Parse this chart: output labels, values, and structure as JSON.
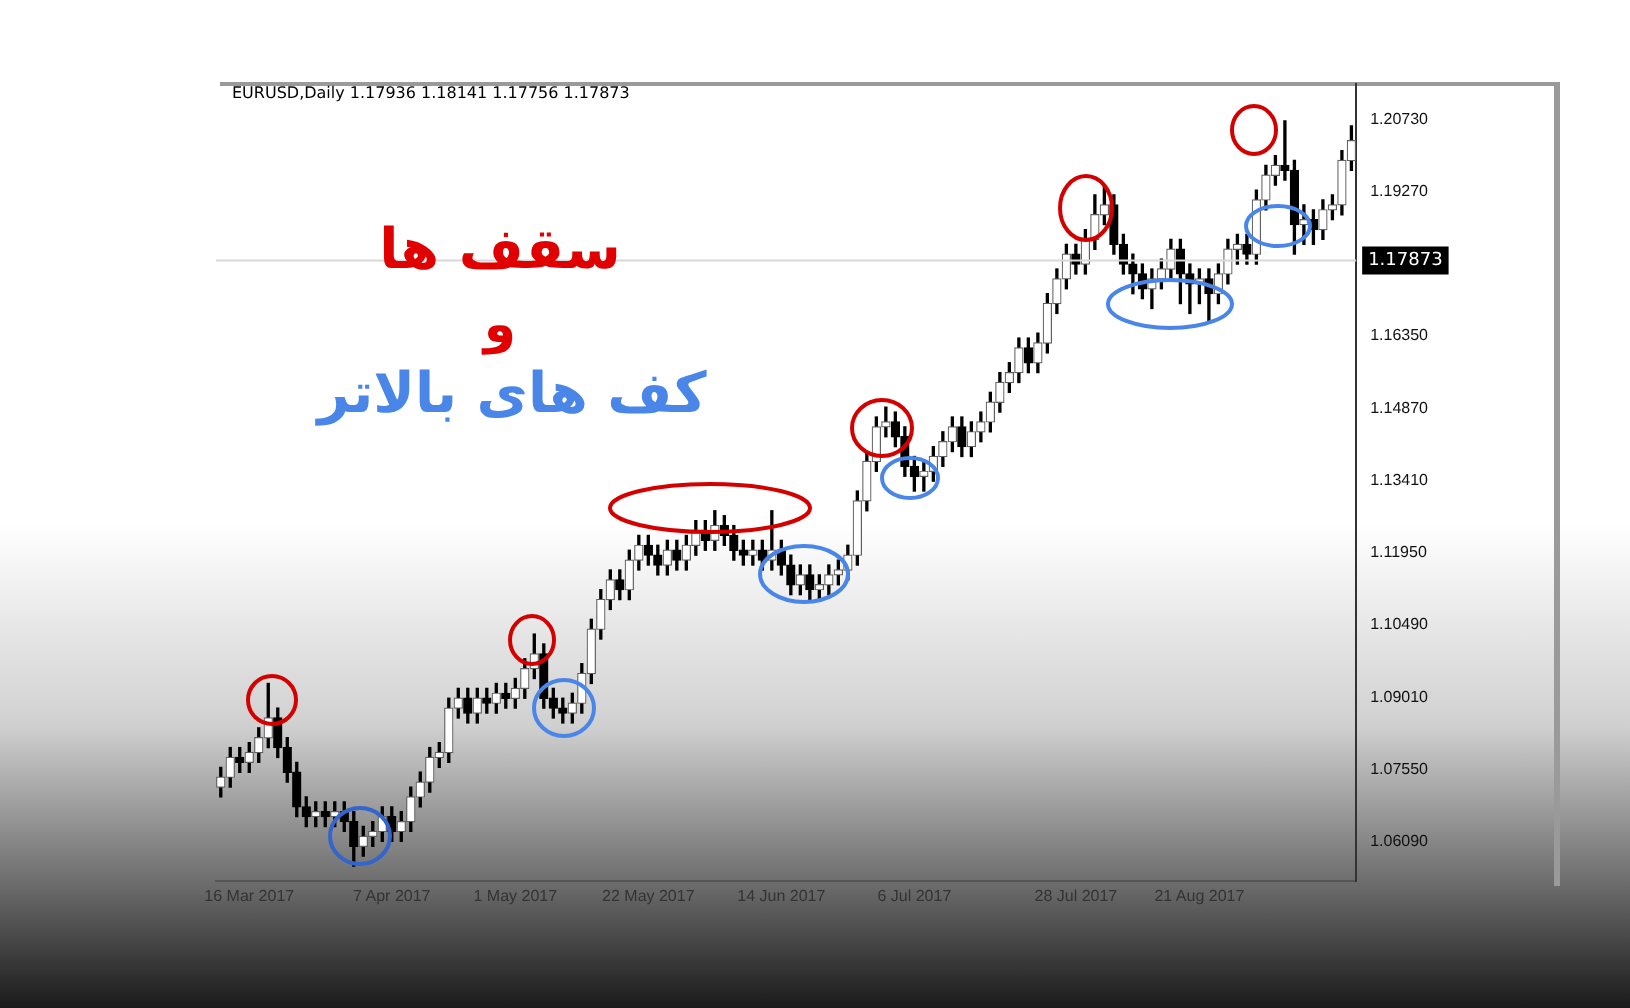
{
  "chart_data": {
    "type": "candlestick",
    "subtitle": "EURUSD,Daily  1.17936 1.18141 1.17756 1.17873",
    "annotations": [
      "سقف ها",
      "و",
      "کف های بالاتر"
    ],
    "categories": [
      null,
      null,
      null,
      "16 Mar 2017",
      null,
      null,
      null,
      null,
      null,
      null,
      null,
      null,
      null,
      null,
      null,
      null,
      null,
      null,
      "7 Apr 2017",
      null,
      null,
      null,
      null,
      null,
      null,
      null,
      null,
      null,
      null,
      null,
      null,
      "1 May 2017",
      null,
      null,
      null,
      null,
      null,
      null,
      null,
      null,
      null,
      null,
      null,
      null,
      null,
      "22 May 2017",
      null,
      null,
      null,
      null,
      null,
      null,
      null,
      null,
      null,
      null,
      null,
      null,
      null,
      "14 Jun 2017",
      null,
      null,
      null,
      null,
      null,
      null,
      null,
      null,
      null,
      null,
      null,
      null,
      null,
      "6 Jul 2017",
      null,
      null,
      null,
      null,
      null,
      null,
      null,
      null,
      null,
      null,
      null,
      null,
      null,
      null,
      null,
      null,
      "28 Jul 2017",
      null,
      null,
      null,
      null,
      null,
      null,
      null,
      null,
      null,
      null,
      null,
      null,
      "21 Aug 2017",
      null,
      null,
      null,
      null,
      null,
      null,
      null,
      null,
      null,
      null,
      null,
      null,
      null,
      null,
      null,
      null
    ],
    "ohlc": [
      [
        1.072,
        1.076,
        1.07,
        1.074
      ],
      [
        1.074,
        1.08,
        1.072,
        1.078
      ],
      [
        1.078,
        1.08,
        1.075,
        1.077
      ],
      [
        1.077,
        1.081,
        1.075,
        1.079
      ],
      [
        1.079,
        1.084,
        1.077,
        1.082
      ],
      [
        1.082,
        1.093,
        1.08,
        1.086
      ],
      [
        1.086,
        1.088,
        1.078,
        1.08
      ],
      [
        1.08,
        1.082,
        1.073,
        1.075
      ],
      [
        1.075,
        1.077,
        1.066,
        1.068
      ],
      [
        1.068,
        1.07,
        1.064,
        1.066
      ],
      [
        1.066,
        1.069,
        1.064,
        1.067
      ],
      [
        1.067,
        1.069,
        1.064,
        1.066
      ],
      [
        1.066,
        1.069,
        1.064,
        1.067
      ],
      [
        1.067,
        1.069,
        1.063,
        1.065
      ],
      [
        1.065,
        1.067,
        1.056,
        1.06
      ],
      [
        1.06,
        1.064,
        1.058,
        1.062
      ],
      [
        1.062,
        1.065,
        1.06,
        1.063
      ],
      [
        1.063,
        1.068,
        1.061,
        1.066
      ],
      [
        1.066,
        1.068,
        1.061,
        1.063
      ],
      [
        1.063,
        1.067,
        1.061,
        1.065
      ],
      [
        1.065,
        1.072,
        1.063,
        1.07
      ],
      [
        1.07,
        1.075,
        1.068,
        1.073
      ],
      [
        1.073,
        1.08,
        1.071,
        1.078
      ],
      [
        1.078,
        1.081,
        1.076,
        1.079
      ],
      [
        1.079,
        1.09,
        1.077,
        1.088
      ],
      [
        1.088,
        1.092,
        1.086,
        1.09
      ],
      [
        1.09,
        1.092,
        1.085,
        1.087
      ],
      [
        1.087,
        1.092,
        1.085,
        1.09
      ],
      [
        1.09,
        1.092,
        1.087,
        1.089
      ],
      [
        1.089,
        1.093,
        1.087,
        1.091
      ],
      [
        1.091,
        1.093,
        1.088,
        1.09
      ],
      [
        1.09,
        1.094,
        1.088,
        1.092
      ],
      [
        1.092,
        1.098,
        1.09,
        1.096
      ],
      [
        1.096,
        1.103,
        1.094,
        1.099
      ],
      [
        1.099,
        1.101,
        1.088,
        1.09
      ],
      [
        1.09,
        1.092,
        1.086,
        1.088
      ],
      [
        1.088,
        1.09,
        1.085,
        1.087
      ],
      [
        1.087,
        1.091,
        1.085,
        1.089
      ],
      [
        1.089,
        1.097,
        1.087,
        1.095
      ],
      [
        1.095,
        1.106,
        1.093,
        1.104
      ],
      [
        1.104,
        1.112,
        1.102,
        1.11
      ],
      [
        1.11,
        1.116,
        1.108,
        1.114
      ],
      [
        1.114,
        1.116,
        1.11,
        1.112
      ],
      [
        1.112,
        1.12,
        1.11,
        1.118
      ],
      [
        1.118,
        1.123,
        1.116,
        1.121
      ],
      [
        1.121,
        1.123,
        1.117,
        1.119
      ],
      [
        1.119,
        1.121,
        1.115,
        1.117
      ],
      [
        1.117,
        1.122,
        1.115,
        1.12
      ],
      [
        1.12,
        1.122,
        1.116,
        1.118
      ],
      [
        1.118,
        1.123,
        1.116,
        1.121
      ],
      [
        1.121,
        1.126,
        1.119,
        1.124
      ],
      [
        1.124,
        1.126,
        1.12,
        1.122
      ],
      [
        1.122,
        1.128,
        1.12,
        1.125
      ],
      [
        1.125,
        1.127,
        1.121,
        1.123
      ],
      [
        1.123,
        1.125,
        1.118,
        1.12
      ],
      [
        1.12,
        1.122,
        1.117,
        1.119
      ],
      [
        1.119,
        1.122,
        1.117,
        1.12
      ],
      [
        1.12,
        1.122,
        1.116,
        1.118
      ],
      [
        1.118,
        1.128,
        1.116,
        1.12
      ],
      [
        1.12,
        1.122,
        1.115,
        1.117
      ],
      [
        1.117,
        1.119,
        1.111,
        1.113
      ],
      [
        1.113,
        1.117,
        1.111,
        1.115
      ],
      [
        1.115,
        1.117,
        1.11,
        1.112
      ],
      [
        1.112,
        1.115,
        1.11,
        1.113
      ],
      [
        1.113,
        1.117,
        1.111,
        1.115
      ],
      [
        1.115,
        1.118,
        1.113,
        1.116
      ],
      [
        1.116,
        1.121,
        1.114,
        1.119
      ],
      [
        1.119,
        1.132,
        1.117,
        1.13
      ],
      [
        1.13,
        1.14,
        1.128,
        1.138
      ],
      [
        1.138,
        1.147,
        1.136,
        1.145
      ],
      [
        1.145,
        1.149,
        1.143,
        1.146
      ],
      [
        1.146,
        1.148,
        1.141,
        1.143
      ],
      [
        1.143,
        1.145,
        1.135,
        1.137
      ],
      [
        1.137,
        1.139,
        1.132,
        1.135
      ],
      [
        1.135,
        1.138,
        1.132,
        1.136
      ],
      [
        1.136,
        1.141,
        1.134,
        1.139
      ],
      [
        1.139,
        1.144,
        1.137,
        1.142
      ],
      [
        1.142,
        1.147,
        1.14,
        1.145
      ],
      [
        1.145,
        1.147,
        1.139,
        1.141
      ],
      [
        1.141,
        1.146,
        1.139,
        1.144
      ],
      [
        1.144,
        1.148,
        1.142,
        1.146
      ],
      [
        1.146,
        1.152,
        1.144,
        1.15
      ],
      [
        1.15,
        1.156,
        1.148,
        1.154
      ],
      [
        1.154,
        1.158,
        1.152,
        1.156
      ],
      [
        1.156,
        1.163,
        1.154,
        1.161
      ],
      [
        1.161,
        1.163,
        1.156,
        1.158
      ],
      [
        1.158,
        1.164,
        1.156,
        1.162
      ],
      [
        1.162,
        1.172,
        1.16,
        1.17
      ],
      [
        1.17,
        1.177,
        1.168,
        1.175
      ],
      [
        1.175,
        1.182,
        1.173,
        1.18
      ],
      [
        1.18,
        1.182,
        1.176,
        1.178
      ],
      [
        1.178,
        1.185,
        1.176,
        1.183
      ],
      [
        1.183,
        1.192,
        1.181,
        1.188
      ],
      [
        1.188,
        1.194,
        1.186,
        1.19
      ],
      [
        1.19,
        1.192,
        1.18,
        1.182
      ],
      [
        1.182,
        1.184,
        1.176,
        1.178
      ],
      [
        1.178,
        1.18,
        1.172,
        1.176
      ],
      [
        1.176,
        1.178,
        1.171,
        1.173
      ],
      [
        1.173,
        1.177,
        1.169,
        1.175
      ],
      [
        1.175,
        1.179,
        1.173,
        1.177
      ],
      [
        1.177,
        1.183,
        1.175,
        1.181
      ],
      [
        1.181,
        1.183,
        1.17,
        1.176
      ],
      [
        1.176,
        1.178,
        1.168,
        1.174
      ],
      [
        1.174,
        1.177,
        1.17,
        1.175
      ],
      [
        1.175,
        1.177,
        1.166,
        1.172
      ],
      [
        1.172,
        1.178,
        1.17,
        1.176
      ],
      [
        1.176,
        1.183,
        1.174,
        1.181
      ],
      [
        1.181,
        1.184,
        1.178,
        1.182
      ],
      [
        1.182,
        1.184,
        1.178,
        1.18
      ],
      [
        1.18,
        1.193,
        1.178,
        1.191
      ],
      [
        1.191,
        1.198,
        1.189,
        1.196
      ],
      [
        1.196,
        1.2,
        1.194,
        1.198
      ],
      [
        1.198,
        1.207,
        1.195,
        1.197
      ],
      [
        1.197,
        1.199,
        1.18,
        1.186
      ],
      [
        1.186,
        1.19,
        1.182,
        1.187
      ],
      [
        1.187,
        1.189,
        1.182,
        1.185
      ],
      [
        1.185,
        1.191,
        1.183,
        1.189
      ],
      [
        1.189,
        1.192,
        1.187,
        1.19
      ],
      [
        1.19,
        1.201,
        1.188,
        1.199
      ],
      [
        1.199,
        1.206,
        1.197,
        1.203
      ]
    ],
    "ylim": [
      1.053,
      1.2145
    ],
    "yticks": [
      {
        "value": 1.0609,
        "label": "1.06090"
      },
      {
        "value": 1.0755,
        "label": "1.07550"
      },
      {
        "value": 1.0901,
        "label": "1.09010"
      },
      {
        "value": 1.1049,
        "label": "1.10490"
      },
      {
        "value": 1.1195,
        "label": "1.11950"
      },
      {
        "value": 1.1341,
        "label": "1.13410"
      },
      {
        "value": 1.1487,
        "label": "1.14870"
      },
      {
        "value": 1.1635,
        "label": "1.16350"
      },
      {
        "value": 1.1927,
        "label": "1.19270"
      },
      {
        "value": 1.2073,
        "label": "1.20730"
      }
    ],
    "ref_lines": [
      {
        "axis": "y",
        "value": 1.17873,
        "label": "1.17873"
      }
    ]
  }
}
